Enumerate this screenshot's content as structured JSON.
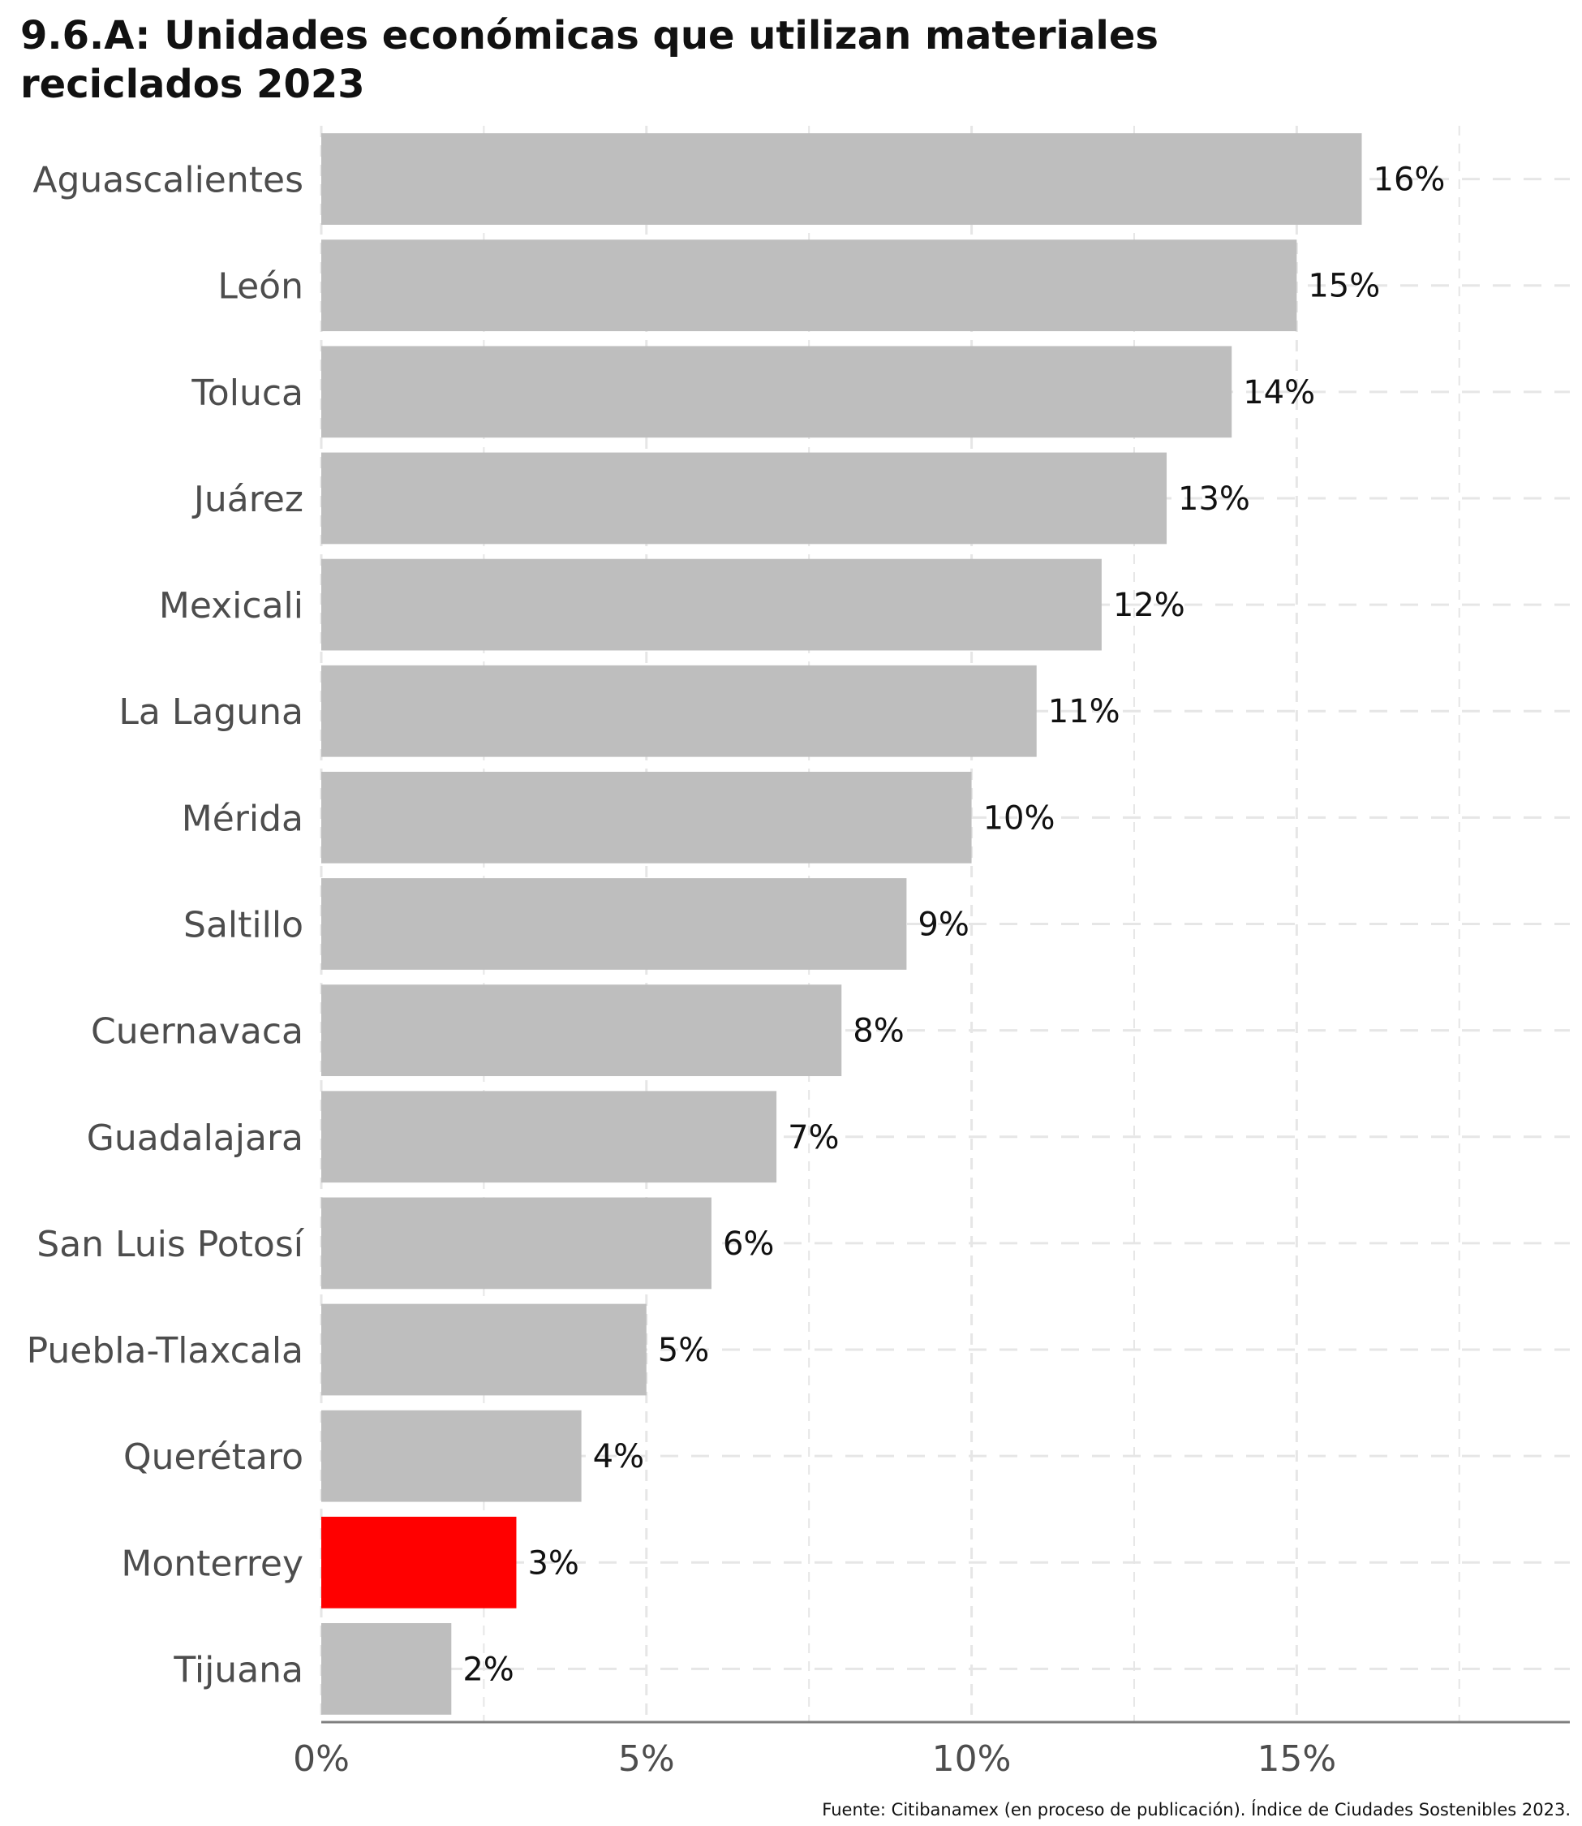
{
  "title_lines": [
    "9.6.A: Unidades económicas que utilizan materiales",
    "reciclados 2023"
  ],
  "source": "Fuente: Citibanamex (en proceso de publicación). Índice de Ciudades Sostenibles 2023.",
  "chart_data": {
    "type": "bar",
    "orientation": "horizontal",
    "title": "9.6.A: Unidades económicas que utilizan materiales reciclados 2023",
    "categories": [
      "Aguascalientes",
      "León",
      "Toluca",
      "Juárez",
      "Mexicali",
      "La Laguna",
      "Mérida",
      "Saltillo",
      "Cuernavaca",
      "Guadalajara",
      "San Luis Potosí",
      "Puebla-Tlaxcala",
      "Querétaro",
      "Monterrey",
      "Tijuana"
    ],
    "values": [
      16,
      15,
      14,
      13,
      12,
      11,
      10,
      9,
      8,
      7,
      6,
      5,
      4,
      3,
      2
    ],
    "value_labels": [
      "16%",
      "15%",
      "14%",
      "13%",
      "12%",
      "11%",
      "10%",
      "9%",
      "8%",
      "7%",
      "6%",
      "5%",
      "4%",
      "3%",
      "2%"
    ],
    "highlight": "Monterrey",
    "colors": {
      "bar": "#bebebe",
      "highlight": "#ff0000",
      "grid": "#e6e6e6",
      "axis": "#7f7f7f"
    },
    "x_ticks": [
      0,
      5,
      10,
      15
    ],
    "x_tick_labels": [
      "0%",
      "5%",
      "10%",
      "15%"
    ],
    "xlim": [
      0,
      19.2
    ],
    "grid": true,
    "xlabel": "",
    "ylabel": ""
  }
}
